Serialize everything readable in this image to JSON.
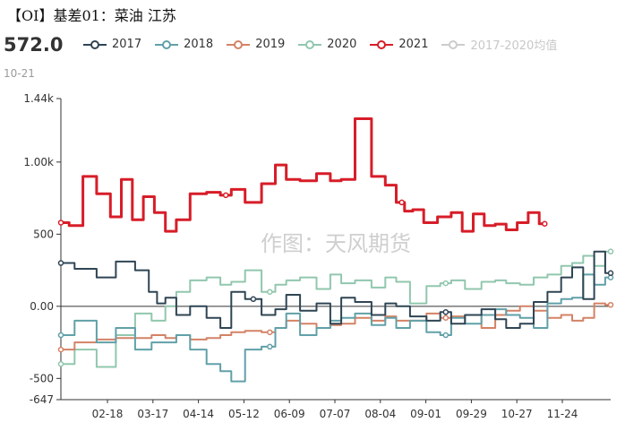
{
  "header": {
    "title": "【OI】基差01：菜油 江苏",
    "current_value": "572.0",
    "current_date": "10-21"
  },
  "watermark": "作图：天风期货",
  "colors": {
    "2017": "#2f4554",
    "2018": "#61a0a8",
    "2019": "#d48265",
    "2020": "#91c7ae",
    "2021": "#d71d28",
    "avg": "#cccccc"
  },
  "chart_data": {
    "type": "line",
    "title": "【OI】基差01：菜油 江苏",
    "xlabel": "",
    "ylabel": "",
    "ylim": [
      -647,
      1440
    ],
    "y_ticks": [
      {
        "value": 1440,
        "label": "1.44k"
      },
      {
        "value": 1000,
        "label": "1.00k"
      },
      {
        "value": 500,
        "label": "500"
      },
      {
        "value": 0,
        "label": "0.00"
      },
      {
        "value": -500,
        "label": "-500"
      },
      {
        "value": -647,
        "label": "-647"
      }
    ],
    "x_tick_labels": [
      "02-18",
      "03-17",
      "04-14",
      "05-12",
      "06-09",
      "07-07",
      "08-04",
      "09-01",
      "09-29",
      "10-27",
      "11-24"
    ],
    "legend_position": "top",
    "grid": false,
    "series": [
      {
        "name": "2017",
        "color_key": "2017",
        "x": [
          0,
          0.05,
          0.08,
          0.12,
          0.15,
          0.17,
          0.18,
          0.2,
          0.22,
          0.25,
          0.28,
          0.3,
          0.32,
          0.35,
          0.38,
          0.4,
          0.42,
          0.45,
          0.48,
          0.5,
          0.52,
          0.55,
          0.58,
          0.6,
          0.62,
          0.65,
          0.68,
          0.7,
          0.72,
          0.75,
          0.78,
          0.8,
          0.82,
          0.85,
          0.87,
          0.9,
          0.92,
          0.94,
          0.96,
          0.98,
          1.0
        ],
        "values": [
          300,
          260,
          200,
          310,
          250,
          100,
          20,
          60,
          -60,
          0,
          -80,
          -150,
          100,
          50,
          -60,
          -20,
          80,
          -30,
          20,
          -120,
          60,
          30,
          -60,
          20,
          0,
          -70,
          -100,
          -40,
          -120,
          -60,
          -20,
          -90,
          -150,
          -120,
          30,
          100,
          200,
          270,
          50,
          380,
          230
        ]
      },
      {
        "name": "2018",
        "color_key": "2018",
        "x": [
          0,
          0.05,
          0.08,
          0.12,
          0.15,
          0.18,
          0.2,
          0.22,
          0.25,
          0.28,
          0.3,
          0.32,
          0.35,
          0.38,
          0.4,
          0.42,
          0.45,
          0.48,
          0.5,
          0.52,
          0.55,
          0.58,
          0.6,
          0.62,
          0.65,
          0.68,
          0.7,
          0.72,
          0.75,
          0.78,
          0.8,
          0.82,
          0.85,
          0.87,
          0.9,
          0.92,
          0.94,
          0.96,
          0.98,
          1.0
        ],
        "values": [
          -200,
          -100,
          -250,
          -150,
          -300,
          -250,
          -250,
          -200,
          -300,
          -400,
          -450,
          -520,
          -300,
          -280,
          -150,
          -50,
          -200,
          -150,
          -100,
          -80,
          -50,
          -130,
          -80,
          -150,
          -100,
          -180,
          -200,
          -80,
          -120,
          -60,
          -20,
          -60,
          -80,
          -150,
          20,
          50,
          60,
          220,
          150,
          200
        ]
      },
      {
        "name": "2019",
        "color_key": "2019",
        "x": [
          0,
          0.05,
          0.08,
          0.12,
          0.15,
          0.18,
          0.2,
          0.22,
          0.25,
          0.28,
          0.3,
          0.32,
          0.35,
          0.38,
          0.4,
          0.42,
          0.45,
          0.48,
          0.5,
          0.52,
          0.55,
          0.58,
          0.6,
          0.62,
          0.65,
          0.68,
          0.7,
          0.72,
          0.75,
          0.78,
          0.8,
          0.82,
          0.85,
          0.87,
          0.9,
          0.92,
          0.94,
          0.96,
          0.98,
          1.0
        ],
        "values": [
          -300,
          -250,
          -230,
          -220,
          -220,
          -200,
          -220,
          -200,
          -230,
          -220,
          -200,
          -180,
          -170,
          -180,
          -150,
          -100,
          -120,
          -150,
          -130,
          -120,
          -80,
          -100,
          -70,
          -100,
          -100,
          -50,
          -80,
          -70,
          -60,
          -150,
          -60,
          -30,
          0,
          -30,
          -80,
          -60,
          -100,
          -80,
          20,
          10
        ]
      },
      {
        "name": "2020",
        "color_key": "2020",
        "x": [
          0,
          0.05,
          0.08,
          0.12,
          0.15,
          0.18,
          0.2,
          0.22,
          0.25,
          0.28,
          0.3,
          0.32,
          0.35,
          0.38,
          0.4,
          0.42,
          0.45,
          0.48,
          0.5,
          0.52,
          0.55,
          0.58,
          0.6,
          0.62,
          0.65,
          0.68,
          0.7,
          0.72,
          0.75,
          0.78,
          0.8,
          0.82,
          0.85,
          0.87,
          0.9,
          0.92,
          0.94,
          0.96,
          0.98,
          1.0
        ],
        "values": [
          -400,
          -300,
          -420,
          -200,
          -50,
          -100,
          0,
          100,
          180,
          200,
          150,
          170,
          250,
          100,
          150,
          180,
          200,
          120,
          220,
          160,
          180,
          130,
          200,
          170,
          20,
          140,
          160,
          180,
          120,
          170,
          180,
          160,
          150,
          200,
          220,
          280,
          300,
          350,
          280,
          380
        ]
      },
      {
        "name": "2021",
        "color_key": "2021",
        "x": [
          0,
          0.03,
          0.05,
          0.08,
          0.1,
          0.12,
          0.14,
          0.16,
          0.18,
          0.2,
          0.22,
          0.25,
          0.28,
          0.3,
          0.32,
          0.35,
          0.38,
          0.4,
          0.42,
          0.45,
          0.48,
          0.5,
          0.52,
          0.55,
          0.58,
          0.6,
          0.62,
          0.63,
          0.65,
          0.67,
          0.7,
          0.72,
          0.74,
          0.76,
          0.78,
          0.8,
          0.82,
          0.84,
          0.86,
          0.88
        ],
        "values": [
          580,
          560,
          900,
          780,
          620,
          880,
          600,
          760,
          650,
          520,
          600,
          780,
          790,
          770,
          810,
          720,
          850,
          980,
          880,
          870,
          920,
          870,
          880,
          1300,
          900,
          840,
          720,
          660,
          670,
          580,
          620,
          650,
          520,
          640,
          560,
          570,
          530,
          580,
          650,
          572
        ]
      }
    ]
  }
}
